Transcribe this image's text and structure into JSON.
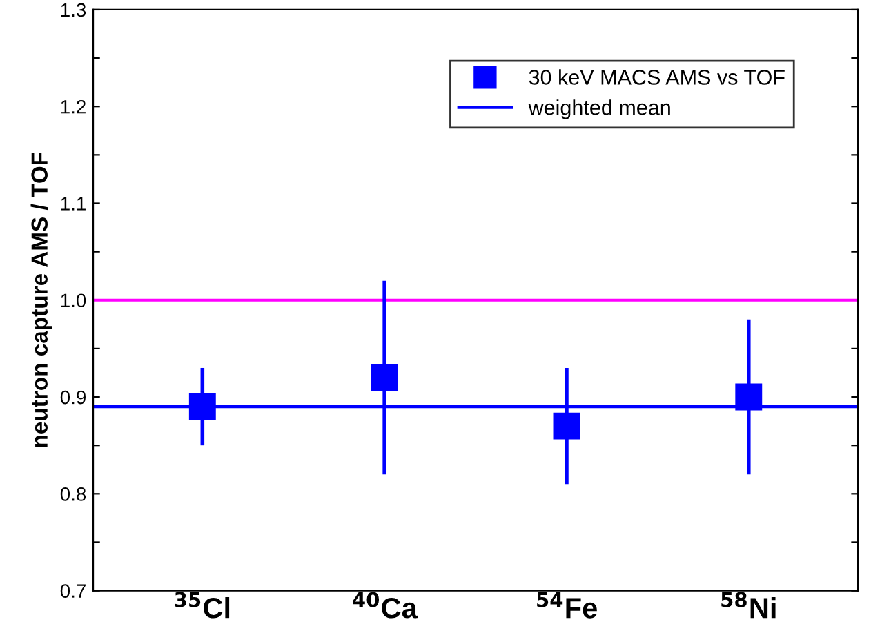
{
  "chart_data": {
    "type": "scatter",
    "ylabel": "neutron capture AMS / TOF",
    "categories": [
      "$^{35}$Cl",
      "$^{40}$Ca",
      "$^{54}$Fe",
      "$^{58}$Ni"
    ],
    "series": [
      {
        "name": "30 keV MACS AMS vs TOF",
        "color": "#0000ff",
        "values": [
          0.89,
          0.92,
          0.87,
          0.9
        ],
        "errors": [
          [
            0.85,
            0.93
          ],
          [
            0.82,
            1.02
          ],
          [
            0.81,
            0.93
          ],
          [
            0.82,
            0.98
          ]
        ]
      }
    ],
    "ylim": [
      0.7,
      1.3
    ],
    "yticks": [
      0.7,
      {
        "value": 0.75,
        "label": null
      },
      0.8,
      {
        "value": 0.85,
        "label": null
      },
      0.9,
      {
        "value": 0.95,
        "label": null
      },
      {
        "value": 1.0,
        "label": "1.0"
      },
      {
        "value": 1.05,
        "label": null
      },
      1.1,
      {
        "value": 1.15,
        "label": null
      },
      1.2,
      {
        "value": 1.25,
        "label": null
      },
      1.3
    ],
    "ref_lines": [
      {
        "axis": "y",
        "value": 0.89,
        "label": "weighted mean",
        "color": "#0000ff",
        "line_style": "solid"
      },
      {
        "axis": "y",
        "value": 1.0,
        "color": "#ff00ff",
        "line_style": "solid"
      }
    ],
    "marker": "square",
    "legend": "top right",
    "grid": false
  }
}
